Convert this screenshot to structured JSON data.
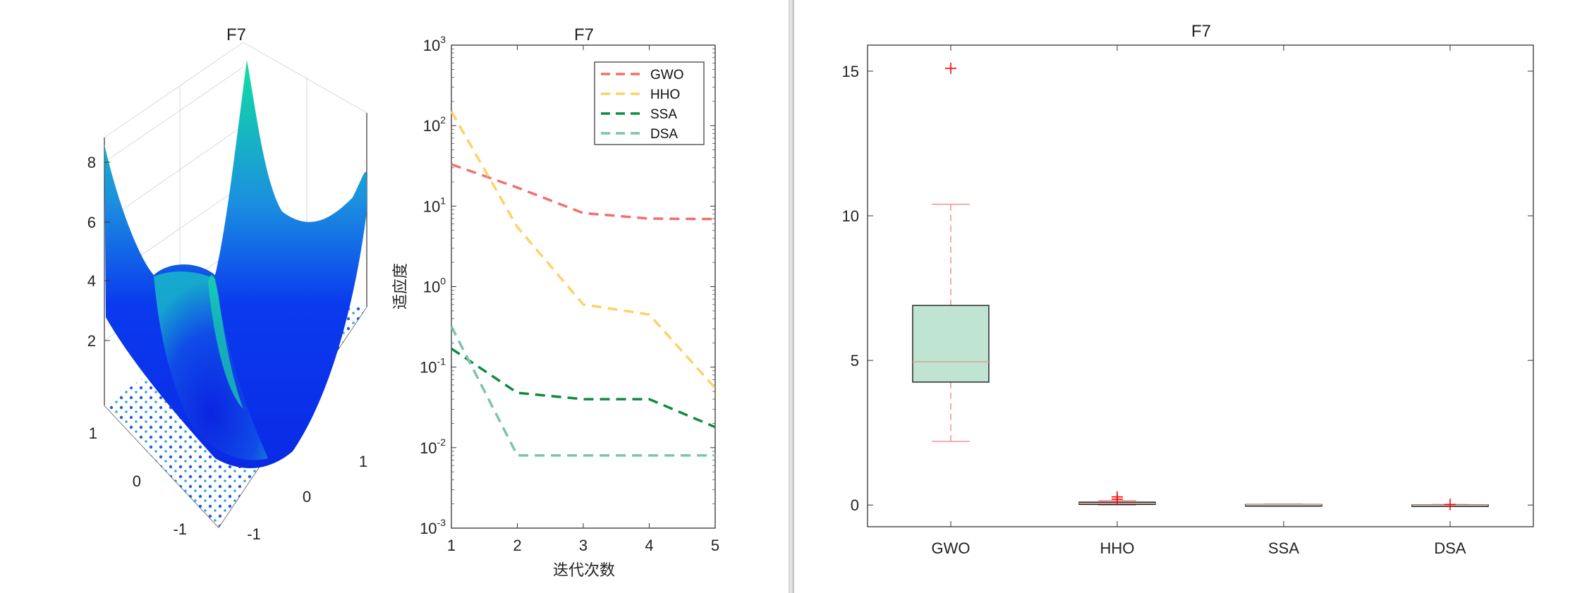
{
  "chart_data": [
    {
      "type": "surface3d",
      "title": "F7",
      "x_ticks": [
        "-1",
        "0",
        "1"
      ],
      "y_ticks": [
        "-1",
        "0",
        "1"
      ],
      "z_ticks": [
        "2",
        "4",
        "6",
        "8"
      ],
      "colormap": [
        "#0a2ae6",
        "#1b8fe0",
        "#11e0a0"
      ]
    },
    {
      "type": "line",
      "title": "F7",
      "xlabel": "迭代次数",
      "ylabel": "适应度",
      "yscale": "log",
      "x": [
        1,
        2,
        3,
        4,
        5
      ],
      "xlim": [
        1,
        5
      ],
      "ylim": [
        0.001,
        1000
      ],
      "x_ticks": [
        "1",
        "2",
        "3",
        "4",
        "5"
      ],
      "y_ticks": [
        {
          "base": "10",
          "exp": "-3"
        },
        {
          "base": "10",
          "exp": "-2"
        },
        {
          "base": "10",
          "exp": "-1"
        },
        {
          "base": "10",
          "exp": "0"
        },
        {
          "base": "10",
          "exp": "1"
        },
        {
          "base": "10",
          "exp": "2"
        },
        {
          "base": "10",
          "exp": "3"
        }
      ],
      "legend_position": "top-right",
      "series": [
        {
          "name": "GWO",
          "color": "#f0706e",
          "values": [
            33,
            17,
            8.2,
            7.0,
            6.9
          ]
        },
        {
          "name": "HHO",
          "color": "#fcd26a",
          "values": [
            150,
            5.5,
            0.6,
            0.45,
            0.055
          ]
        },
        {
          "name": "SSA",
          "color": "#0e8a43",
          "values": [
            0.17,
            0.048,
            0.04,
            0.04,
            0.018
          ]
        },
        {
          "name": "DSA",
          "color": "#7cc5a6",
          "values": [
            0.32,
            0.008,
            0.008,
            0.008,
            0.008
          ]
        }
      ]
    },
    {
      "type": "box",
      "title": "F7",
      "categories": [
        "GWO",
        "HHO",
        "SSA",
        "DSA"
      ],
      "ylim": [
        -0.75,
        15.9
      ],
      "y_ticks": [
        "0",
        "5",
        "10",
        "15"
      ],
      "box_color": "#c0e4d2",
      "whisker_color": "#f08080",
      "median_color": "#d4a89b",
      "outlier_color": "#ff0000",
      "boxes": [
        {
          "name": "GWO",
          "min": 2.2,
          "q1": 4.25,
          "median": 4.95,
          "q3": 6.9,
          "max": 10.4,
          "outliers": [
            15.1
          ]
        },
        {
          "name": "HHO",
          "min": 0.0,
          "q1": 0.02,
          "median": 0.06,
          "q3": 0.1,
          "max": 0.15,
          "outliers": [
            0.2,
            0.28
          ]
        },
        {
          "name": "SSA",
          "min": 0.0,
          "q1": 0.0,
          "median": 0.01,
          "q3": 0.02,
          "max": 0.03,
          "outliers": []
        },
        {
          "name": "DSA",
          "min": 0.0,
          "q1": 0.0,
          "median": 0.0,
          "q3": 0.01,
          "max": 0.02,
          "outliers": [
            0.02
          ]
        }
      ]
    }
  ]
}
